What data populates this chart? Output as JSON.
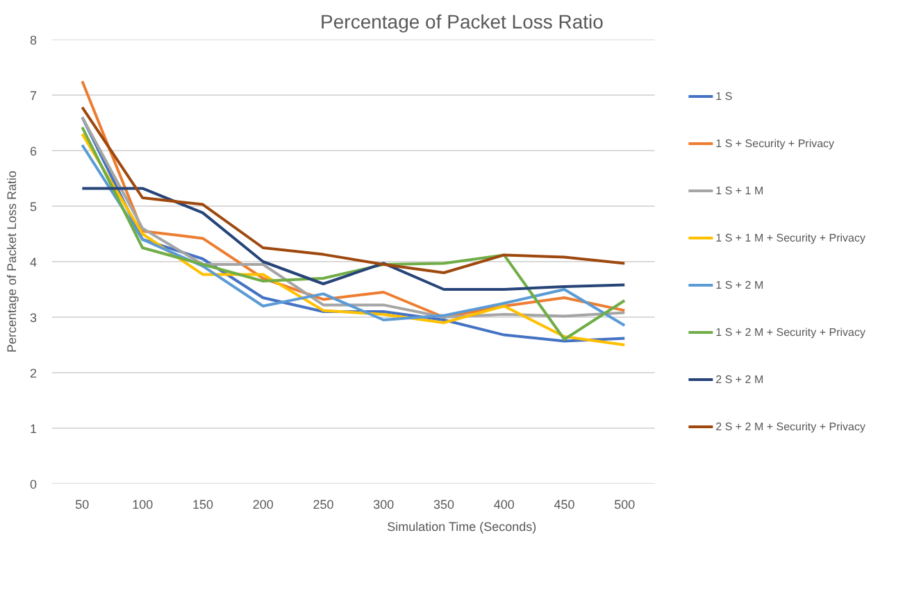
{
  "chart_data": {
    "type": "line",
    "title": "Percentage of Packet Loss Ratio",
    "xlabel": "Simulation Time (Seconds)",
    "ylabel": "Percentage of Packet Loss Ratio",
    "categories": [
      "50",
      "100",
      "150",
      "200",
      "250",
      "300",
      "350",
      "400",
      "450",
      "500"
    ],
    "ylim": [
      0,
      8
    ],
    "yticks": [
      0,
      1,
      2,
      3,
      4,
      5,
      6,
      7,
      8
    ],
    "grid": "y",
    "legend": "right",
    "marker": "none",
    "line_style": "solid",
    "series": [
      {
        "name": "1 S",
        "color": "#4472c4",
        "values": [
          6.6,
          4.4,
          4.05,
          3.35,
          3.1,
          3.1,
          2.95,
          2.68,
          2.57,
          2.62
        ]
      },
      {
        "name": "1 S + Security + Privacy",
        "color": "#ed7d31",
        "values": [
          7.25,
          4.55,
          4.42,
          3.7,
          3.32,
          3.45,
          3.0,
          3.2,
          3.35,
          3.12
        ]
      },
      {
        "name": "1 S + 1 M",
        "color": "#a5a5a5",
        "values": [
          6.6,
          4.6,
          3.95,
          3.95,
          3.22,
          3.22,
          3.0,
          3.05,
          3.02,
          3.08
        ]
      },
      {
        "name": "1 S + 1 M + Security + Privacy",
        "color": "#ffc000",
        "values": [
          6.3,
          4.5,
          3.77,
          3.77,
          3.12,
          3.05,
          2.9,
          3.2,
          2.65,
          2.5
        ]
      },
      {
        "name": "1 S + 2 M",
        "color": "#5b9bd5",
        "values": [
          6.1,
          4.4,
          3.92,
          3.2,
          3.42,
          2.95,
          3.03,
          3.25,
          3.5,
          2.85
        ]
      },
      {
        "name": "1 S + 2 M + Security + Privacy",
        "color": "#70ad47",
        "values": [
          6.42,
          4.25,
          3.95,
          3.65,
          3.7,
          3.95,
          3.97,
          4.12,
          2.6,
          3.3
        ]
      },
      {
        "name": "2 S + 2 M",
        "color": "#264478",
        "values": [
          5.32,
          5.32,
          4.88,
          4.0,
          3.6,
          3.97,
          3.5,
          3.5,
          3.55,
          3.58
        ]
      },
      {
        "name": "2 S + 2 M + Security + Privacy",
        "color": "#9e480e",
        "values": [
          6.78,
          5.15,
          5.03,
          4.25,
          4.13,
          3.95,
          3.8,
          4.12,
          4.08,
          3.97
        ]
      }
    ]
  }
}
